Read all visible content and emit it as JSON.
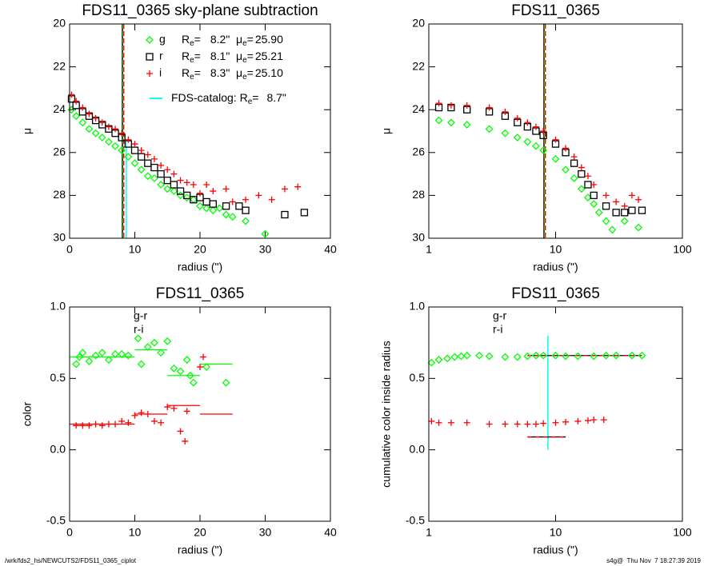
{
  "chart_data": [
    {
      "type": "scatter",
      "title": "FDS11_0365 sky-plane subtraction",
      "xlabel": "radius (\")",
      "ylabel": "μ",
      "xlim": [
        0,
        40
      ],
      "ylim": [
        30,
        20
      ],
      "xticks": [
        0,
        10,
        20,
        30,
        40
      ],
      "yticks": [
        20,
        22,
        24,
        26,
        28,
        30
      ],
      "xlog": false,
      "legend_text": {
        "r": "R",
        "mu": "μ",
        "sub": "e",
        "eq": "="
      },
      "series": [
        {
          "name": "g",
          "color": "#00ff00",
          "marker": "diamond",
          "re_label": "8.2\"",
          "mue_label": "25.90",
          "x": [
            0.3,
            1,
            2,
            3,
            4,
            5,
            6,
            7,
            8,
            9,
            10,
            11,
            12,
            13,
            14,
            15,
            16,
            17,
            18,
            19,
            20,
            21,
            22,
            23,
            24,
            25,
            27,
            30
          ],
          "values": [
            24.0,
            24.3,
            24.6,
            24.9,
            25.1,
            25.3,
            25.5,
            25.7,
            25.9,
            26.2,
            26.5,
            26.8,
            27.1,
            27.2,
            27.5,
            27.7,
            27.8,
            28.0,
            28.1,
            28.2,
            28.5,
            28.6,
            28.7,
            28.6,
            28.9,
            29.0,
            29.2,
            29.8
          ]
        },
        {
          "name": "r",
          "color": "#000000",
          "marker": "square",
          "re_label": "8.1\"",
          "mue_label": "25.21",
          "x": [
            0.3,
            1,
            2,
            3,
            4,
            5,
            6,
            7,
            8,
            9,
            10,
            11,
            12,
            13,
            14,
            15,
            16,
            17,
            18,
            19,
            20,
            21,
            22,
            24,
            26,
            27,
            33,
            36
          ],
          "values": [
            23.5,
            23.8,
            24.1,
            24.3,
            24.5,
            24.7,
            24.9,
            25.1,
            25.3,
            25.6,
            25.9,
            26.2,
            26.5,
            26.7,
            27.0,
            27.3,
            27.5,
            27.8,
            28.0,
            28.2,
            28.1,
            28.3,
            28.4,
            28.5,
            28.5,
            28.7,
            28.9,
            28.8
          ]
        },
        {
          "name": "i",
          "color": "#ff0000",
          "marker": "plus",
          "re_label": "8.3\"",
          "mue_label": "25.10",
          "x": [
            0.3,
            1,
            2,
            3,
            4,
            5,
            6,
            7,
            8,
            9,
            10,
            11,
            12,
            13,
            14,
            15,
            16,
            17,
            18,
            19,
            20,
            21,
            22,
            24,
            25,
            27,
            29,
            31,
            33,
            35
          ],
          "values": [
            23.3,
            23.6,
            23.9,
            24.2,
            24.4,
            24.6,
            24.8,
            24.9,
            25.1,
            25.4,
            25.6,
            25.9,
            26.1,
            26.3,
            26.6,
            26.8,
            27.0,
            27.3,
            27.4,
            27.5,
            27.9,
            27.5,
            27.8,
            27.7,
            28.3,
            28.2,
            28.0,
            28.2,
            27.7,
            27.6
          ]
        }
      ],
      "vlines": [
        {
          "value": 8.1,
          "color": "#000000",
          "dash": false
        },
        {
          "value": 8.2,
          "color": "#00ff00",
          "dash": true
        },
        {
          "value": 8.3,
          "color": "#ff0000",
          "dash": true
        },
        {
          "value": 8.7,
          "color": "#00ffff",
          "dash": false,
          "span": [
            25.5,
            30
          ]
        }
      ],
      "catalog": {
        "text": "FDS-catalog: R",
        "value_label": "8.7\"",
        "color": "#00ffff"
      }
    },
    {
      "type": "scatter",
      "title": "FDS11_0365",
      "xlabel": "radius (\")",
      "ylabel": "μ",
      "xlim": [
        1,
        100
      ],
      "ylim": [
        30,
        20
      ],
      "xticks": [
        1,
        10,
        100
      ],
      "yticks": [
        20,
        22,
        24,
        26,
        28,
        30
      ],
      "xlog": true,
      "series": [
        {
          "name": "g",
          "color": "#00ff00",
          "marker": "diamond",
          "x": [
            1.2,
            1.5,
            2,
            3,
            4,
            5,
            6,
            7,
            8,
            10,
            12,
            14,
            16,
            18,
            20,
            22,
            25,
            28,
            35,
            45
          ],
          "values": [
            24.5,
            24.6,
            24.7,
            24.9,
            25.1,
            25.3,
            25.5,
            25.7,
            25.9,
            26.3,
            26.8,
            27.2,
            27.7,
            28.1,
            28.4,
            28.8,
            29.2,
            29.6,
            29.2,
            29.5
          ]
        },
        {
          "name": "r",
          "color": "#000000",
          "marker": "square",
          "x": [
            1.2,
            1.5,
            2,
            3,
            4,
            5,
            6,
            7,
            8,
            10,
            12,
            14,
            16,
            18,
            20,
            25,
            30,
            35,
            40,
            48
          ],
          "values": [
            23.9,
            23.9,
            24.0,
            24.1,
            24.3,
            24.6,
            24.8,
            25.0,
            25.2,
            25.6,
            26.0,
            26.5,
            27.0,
            27.5,
            28.0,
            28.5,
            28.8,
            28.8,
            28.7,
            28.7
          ]
        },
        {
          "name": "i",
          "color": "#ff0000",
          "marker": "plus",
          "x": [
            1.2,
            1.5,
            2,
            3,
            4,
            5,
            6,
            7,
            8,
            10,
            12,
            14,
            16,
            18,
            20,
            25,
            30,
            35,
            40,
            45
          ],
          "values": [
            23.7,
            23.8,
            23.8,
            23.9,
            24.1,
            24.4,
            24.6,
            24.8,
            25.0,
            25.4,
            25.8,
            26.2,
            26.7,
            27.1,
            27.5,
            28.0,
            28.3,
            28.5,
            28.0,
            28.2
          ]
        }
      ],
      "vlines": [
        {
          "value": 8.1,
          "color": "#000000",
          "dash": false
        },
        {
          "value": 8.2,
          "color": "#00ff00",
          "dash": true
        },
        {
          "value": 8.3,
          "color": "#ff0000",
          "dash": true
        }
      ]
    },
    {
      "type": "scatter",
      "title": "FDS11_0365",
      "xlabel": "radius (\")",
      "ylabel": "color",
      "xlim": [
        0,
        40
      ],
      "ylim": [
        -0.5,
        1.0
      ],
      "xticks": [
        0,
        10,
        20,
        30,
        40
      ],
      "yticks": [
        -0.5,
        {
          "value": 0,
          "label": "0.0"
        },
        0.5,
        {
          "value": 1,
          "label": "1.0"
        }
      ],
      "xlog": false,
      "series": [
        {
          "name": "g-r",
          "color": "#00ff00",
          "marker": "diamond",
          "x": [
            1,
            1.5,
            2,
            3,
            4,
            5,
            6,
            7,
            8,
            9,
            10.5,
            11,
            12,
            13,
            14,
            15,
            16,
            17,
            18,
            18.5,
            19,
            21,
            24
          ],
          "values": [
            0.6,
            0.65,
            0.68,
            0.62,
            0.66,
            0.68,
            0.63,
            0.67,
            0.67,
            0.66,
            0.78,
            0.6,
            0.72,
            0.75,
            0.68,
            0.76,
            0.57,
            0.55,
            0.63,
            0.52,
            0.47,
            0.58,
            0.47
          ]
        },
        {
          "name": "r-i",
          "color": "#ff0000",
          "marker": "plus",
          "x": [
            1,
            2,
            3,
            4,
            5,
            6,
            7,
            8,
            9,
            10,
            11,
            12,
            13,
            14,
            15,
            16,
            17,
            17.7,
            18,
            20,
            20.5
          ],
          "values": [
            0.17,
            0.17,
            0.17,
            0.18,
            0.17,
            0.18,
            0.18,
            0.2,
            0.19,
            0.24,
            0.26,
            0.25,
            0.2,
            0.19,
            0.3,
            0.29,
            0.13,
            0.06,
            0.27,
            0.58,
            0.65
          ]
        }
      ],
      "segments": [
        {
          "color": "#00ff00",
          "x_start": [
            0,
            10,
            15,
            20
          ],
          "x_end": [
            10,
            15,
            20,
            25
          ],
          "values": [
            0.65,
            0.7,
            0.52,
            0.6
          ]
        },
        {
          "color": "#ff0000",
          "x_start": [
            0,
            10,
            15,
            20
          ],
          "x_end": [
            10,
            15,
            20,
            25
          ],
          "values": [
            0.18,
            0.25,
            0.31,
            0.25
          ]
        }
      ]
    },
    {
      "type": "scatter",
      "title": "FDS11_0365",
      "xlabel": "radius (\")",
      "ylabel": "cumulative color inside radius",
      "xlim": [
        1,
        100
      ],
      "ylim": [
        -0.5,
        1.0
      ],
      "xticks": [
        1,
        10,
        100
      ],
      "yticks": [
        -0.5,
        {
          "value": 0,
          "label": "0.0"
        },
        0.5,
        {
          "value": 1,
          "label": "1.0"
        }
      ],
      "xlog": true,
      "series": [
        {
          "name": "g-r",
          "color": "#00ff00",
          "marker": "diamond",
          "x": [
            1.05,
            1.2,
            1.4,
            1.6,
            1.8,
            2,
            2.5,
            3,
            4,
            5,
            6,
            7,
            8,
            10,
            12,
            15,
            20,
            25,
            30,
            40,
            48
          ],
          "values": [
            0.61,
            0.63,
            0.64,
            0.65,
            0.655,
            0.66,
            0.66,
            0.655,
            0.65,
            0.65,
            0.655,
            0.66,
            0.66,
            0.66,
            0.655,
            0.655,
            0.655,
            0.66,
            0.66,
            0.66,
            0.66
          ]
        },
        {
          "name": "r-i",
          "color": "#ff0000",
          "marker": "plus",
          "x": [
            1.05,
            1.2,
            1.5,
            2,
            3,
            4,
            5,
            6,
            7,
            8,
            10,
            12,
            15,
            18,
            20,
            24
          ],
          "values": [
            0.2,
            0.19,
            0.19,
            0.19,
            0.18,
            0.18,
            0.18,
            0.18,
            0.18,
            0.185,
            0.19,
            0.195,
            0.2,
            0.205,
            0.21,
            0.21
          ]
        }
      ],
      "segments": [
        {
          "color": "#000000",
          "dash_color": "#ff0000",
          "x_start": [
            6,
            6
          ],
          "x_end": [
            48,
            12
          ],
          "values": [
            0.66,
            0.09
          ]
        }
      ],
      "vlines": [
        {
          "value": 8.7,
          "color": "#00ffff",
          "dash": false,
          "span": [
            0,
            0.8
          ]
        }
      ]
    }
  ],
  "footer": {
    "left": "/wrk/fds2_hs/NEWCUTS2/FDS11_0365_ciplot",
    "right": "s4g@  Thu Nov  7 18:27:39 2019"
  }
}
